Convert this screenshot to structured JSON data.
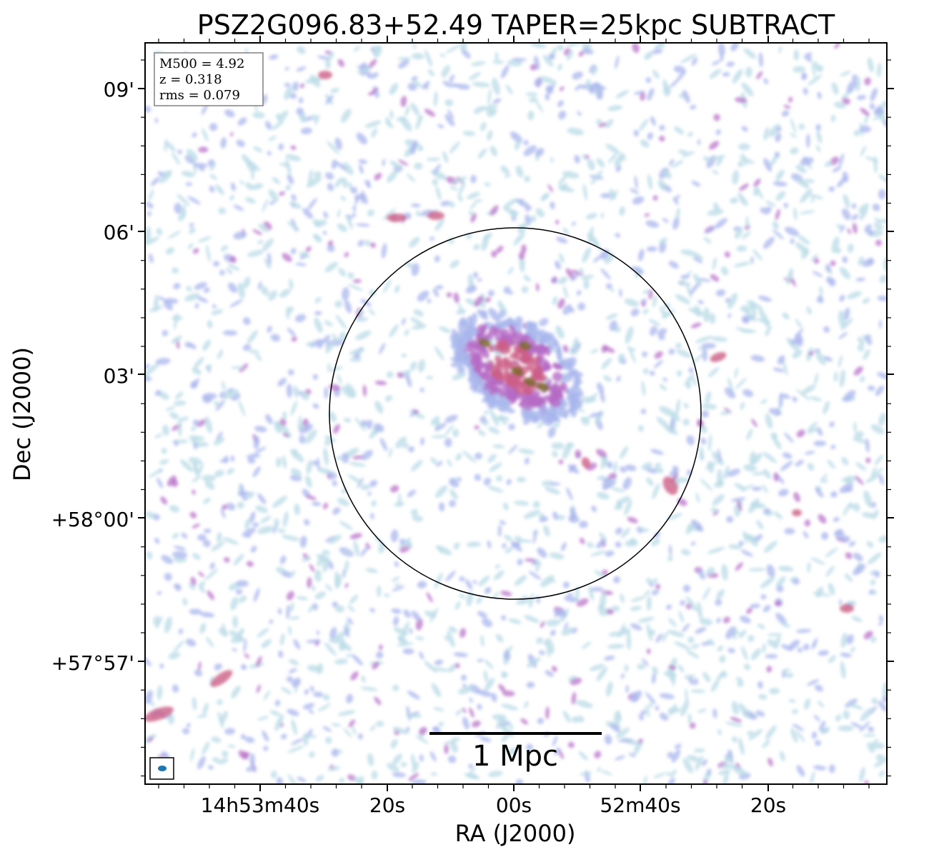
{
  "chart_data": {
    "type": "heatmap",
    "title": "PSZ2G096.83+52.49 TAPER=25kpc SUBTRACT",
    "xlabel": "RA (J2000)",
    "ylabel": "Dec (J2000)",
    "x_ticks": [
      "14h53m40s",
      "20s",
      "00s",
      "52m40s",
      "20s"
    ],
    "y_ticks": [
      "09'",
      "06'",
      "03'",
      "+58°00'",
      "+57°57'"
    ],
    "info": {
      "m500": "M500 = 4.92",
      "z": "z = 0.318",
      "rms": "rms = 0.079"
    },
    "scalebar_label": "1 Mpc",
    "circle": true,
    "beam": true,
    "colors": {
      "faint": "#b9dbe6",
      "low": "#a9b6ec",
      "mid": "#b56bc6",
      "high": "#cc5e86",
      "peak": "#7e6a2e"
    }
  }
}
